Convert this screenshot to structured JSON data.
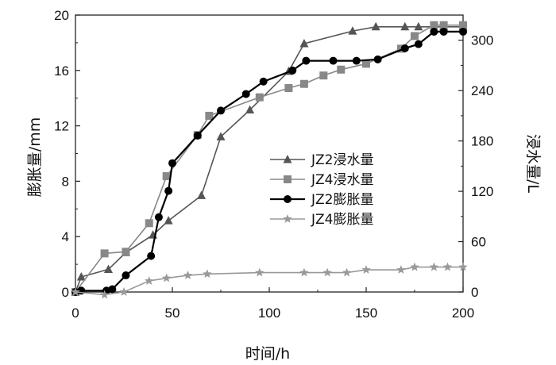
{
  "chart_data": {
    "type": "line",
    "xlabel": "时间/h",
    "ylabel_left": "膨胀量/mm",
    "ylabel_right": "浸水量/L",
    "xlim": [
      0,
      200
    ],
    "ylim_left": [
      0,
      20
    ],
    "ylim_right": [
      0,
      330
    ],
    "x_ticks": [
      0,
      50,
      100,
      150,
      200
    ],
    "y_ticks_left": [
      0,
      4,
      8,
      12,
      16,
      20
    ],
    "y_ticks_right": [
      0,
      60,
      120,
      180,
      240,
      300
    ],
    "grid": false,
    "legend_position": "center-right",
    "series": [
      {
        "name": "JZ2浸水量",
        "axis": "right",
        "marker": "triangle",
        "color": "#555555",
        "x": [
          0,
          3,
          17,
          26,
          40,
          48,
          65,
          75,
          90,
          110,
          118,
          143,
          155,
          170,
          177,
          190,
          200
        ],
        "y": [
          0,
          18,
          27,
          47,
          68,
          85,
          115,
          185,
          217,
          263,
          296,
          311,
          316,
          316,
          316,
          316,
          316
        ]
      },
      {
        "name": "JZ4浸水量",
        "axis": "right",
        "marker": "square",
        "color": "#888888",
        "x": [
          0,
          15,
          26,
          38,
          47,
          63,
          69,
          95,
          110,
          118,
          128,
          137,
          150,
          168,
          175,
          185,
          190,
          200
        ],
        "y": [
          0,
          46,
          48,
          82,
          138,
          187,
          210,
          232,
          243,
          248,
          258,
          265,
          272,
          290,
          305,
          318,
          318,
          318
        ]
      },
      {
        "name": "JZ2膨胀量",
        "axis": "left",
        "marker": "circle",
        "color": "#000000",
        "x": [
          0,
          3,
          16,
          19,
          26,
          39,
          43,
          48,
          50,
          63,
          75,
          88,
          97,
          112,
          119,
          133,
          145,
          156,
          170,
          177,
          185,
          190,
          200
        ],
        "y": [
          0,
          0.1,
          0.1,
          0.2,
          1.2,
          2.6,
          5.4,
          7.3,
          9.3,
          11.3,
          13.1,
          14.3,
          15.2,
          16.0,
          16.7,
          16.7,
          16.7,
          16.8,
          17.6,
          17.9,
          18.8,
          18.8,
          18.8
        ]
      },
      {
        "name": "JZ4膨胀量",
        "axis": "left",
        "marker": "star",
        "color": "#999999",
        "x": [
          0,
          15,
          25,
          38,
          47,
          58,
          68,
          95,
          118,
          130,
          140,
          150,
          168,
          175,
          185,
          192,
          200
        ],
        "y": [
          0,
          -0.2,
          0,
          0.8,
          1.0,
          1.2,
          1.3,
          1.4,
          1.4,
          1.4,
          1.4,
          1.6,
          1.6,
          1.8,
          1.8,
          1.8,
          1.8
        ]
      }
    ]
  }
}
